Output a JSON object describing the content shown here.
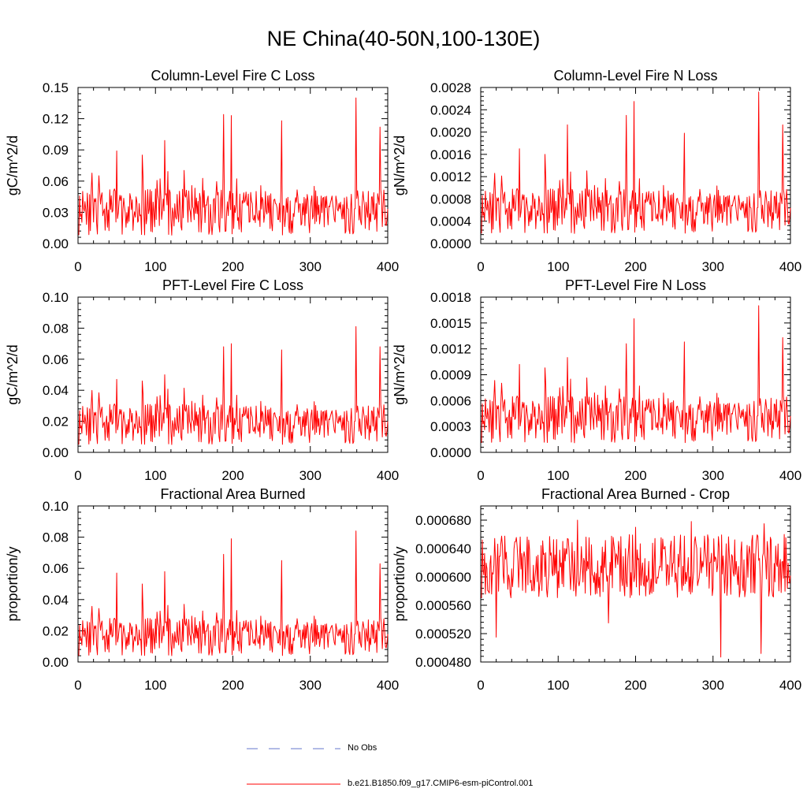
{
  "title": "NE China(40-50N,100-130E)",
  "colors": {
    "series": "#ff0000",
    "obs": "#6677cc",
    "axis": "#000000"
  },
  "legend": {
    "obs_label": "No Obs",
    "model_label": "b.e21.B1850.f09_g17.CMIP6-esm-piControl.001"
  },
  "chart_data": [
    {
      "type": "line",
      "title": "Column-Level Fire C Loss",
      "ylabel": "gC/m^2/d",
      "xlim": [
        0,
        400
      ],
      "ylim": [
        0,
        0.15
      ],
      "xticks": [
        "0",
        "100",
        "200",
        "300",
        "400"
      ],
      "yticks": [
        "0.00",
        "0.03",
        "0.06",
        "0.09",
        "0.12",
        "0.15"
      ],
      "seed": 11,
      "base": 0.03,
      "spread": 0.028,
      "noise": 0.022,
      "spikes": [
        [
          50,
          0.089
        ],
        [
          83,
          0.085
        ],
        [
          112,
          0.099
        ],
        [
          188,
          0.124
        ],
        [
          198,
          0.123
        ],
        [
          263,
          0.118
        ],
        [
          359,
          0.14
        ],
        [
          390,
          0.112
        ]
      ]
    },
    {
      "type": "line",
      "title": "Column-Level Fire N Loss",
      "ylabel": "gN/m^2/d",
      "xlim": [
        0,
        400
      ],
      "ylim": [
        0,
        0.0028
      ],
      "xticks": [
        "0",
        "100",
        "200",
        "300",
        "400"
      ],
      "yticks": [
        "0.0000",
        "0.0004",
        "0.0008",
        "0.0012",
        "0.0016",
        "0.0020",
        "0.0024",
        "0.0028"
      ],
      "seed": 11,
      "base": 0.00058,
      "spread": 0.0005,
      "noise": 0.0004,
      "spikes": [
        [
          50,
          0.0017
        ],
        [
          83,
          0.0016
        ],
        [
          112,
          0.00213
        ],
        [
          188,
          0.0023
        ],
        [
          198,
          0.00255
        ],
        [
          263,
          0.00198
        ],
        [
          359,
          0.00272
        ],
        [
          390,
          0.00213
        ]
      ]
    },
    {
      "type": "line",
      "title": "PFT-Level Fire C Loss",
      "ylabel": "gC/m^2/d",
      "xlim": [
        0,
        400
      ],
      "ylim": [
        0,
        0.1
      ],
      "xticks": [
        "0",
        "100",
        "200",
        "300",
        "400"
      ],
      "yticks": [
        "0.00",
        "0.02",
        "0.04",
        "0.06",
        "0.08",
        "0.10"
      ],
      "seed": 11,
      "base": 0.018,
      "spread": 0.016,
      "noise": 0.013,
      "spikes": [
        [
          50,
          0.047
        ],
        [
          83,
          0.046
        ],
        [
          112,
          0.05
        ],
        [
          188,
          0.068
        ],
        [
          198,
          0.07
        ],
        [
          263,
          0.066
        ],
        [
          359,
          0.081
        ],
        [
          390,
          0.068
        ]
      ]
    },
    {
      "type": "line",
      "title": "PFT-Level Fire N Loss",
      "ylabel": "gN/m^2/d",
      "xlim": [
        0,
        400
      ],
      "ylim": [
        0,
        0.0018
      ],
      "xticks": [
        "0",
        "100",
        "200",
        "300",
        "400"
      ],
      "yticks": [
        "0.0000",
        "0.0003",
        "0.0006",
        "0.0009",
        "0.0012",
        "0.0015",
        "0.0018"
      ],
      "seed": 11,
      "base": 0.00038,
      "spread": 0.00033,
      "noise": 0.00027,
      "spikes": [
        [
          50,
          0.00102
        ],
        [
          83,
          0.00098
        ],
        [
          112,
          0.0011
        ],
        [
          188,
          0.00126
        ],
        [
          198,
          0.00155
        ],
        [
          263,
          0.00128
        ],
        [
          359,
          0.0017
        ],
        [
          390,
          0.00133
        ]
      ]
    },
    {
      "type": "line",
      "title": "Fractional Area Burned",
      "ylabel": "proportion/y",
      "xlim": [
        0,
        400
      ],
      "ylim": [
        0,
        0.1
      ],
      "xticks": [
        "0",
        "100",
        "200",
        "300",
        "400"
      ],
      "yticks": [
        "0.00",
        "0.02",
        "0.04",
        "0.06",
        "0.08",
        "0.10"
      ],
      "seed": 11,
      "base": 0.016,
      "spread": 0.014,
      "noise": 0.012,
      "spikes": [
        [
          50,
          0.057
        ],
        [
          83,
          0.05
        ],
        [
          112,
          0.058
        ],
        [
          188,
          0.069
        ],
        [
          198,
          0.079
        ],
        [
          263,
          0.065
        ],
        [
          359,
          0.084
        ],
        [
          390,
          0.063
        ]
      ]
    },
    {
      "type": "line",
      "title": "Fractional Area Burned - Crop",
      "ylabel": "proportion/y",
      "xlim": [
        0,
        400
      ],
      "ylim": [
        0.00048,
        0.0007
      ],
      "xticks": [
        "0",
        "100",
        "200",
        "300",
        "400"
      ],
      "yticks": [
        "0.000480",
        "0.000520",
        "0.000560",
        "0.000600",
        "0.000640",
        "0.000680"
      ],
      "seed": 29,
      "base": 0.000615,
      "spread": 0.0,
      "noise": 4.5e-05,
      "spikes": [
        [
          20,
          0.000515
        ],
        [
          125,
          0.00068
        ],
        [
          165,
          0.000535
        ],
        [
          200,
          0.00067
        ],
        [
          272,
          0.000678
        ],
        [
          310,
          0.000487
        ],
        [
          362,
          0.000492
        ],
        [
          366,
          0.000675
        ]
      ]
    }
  ]
}
